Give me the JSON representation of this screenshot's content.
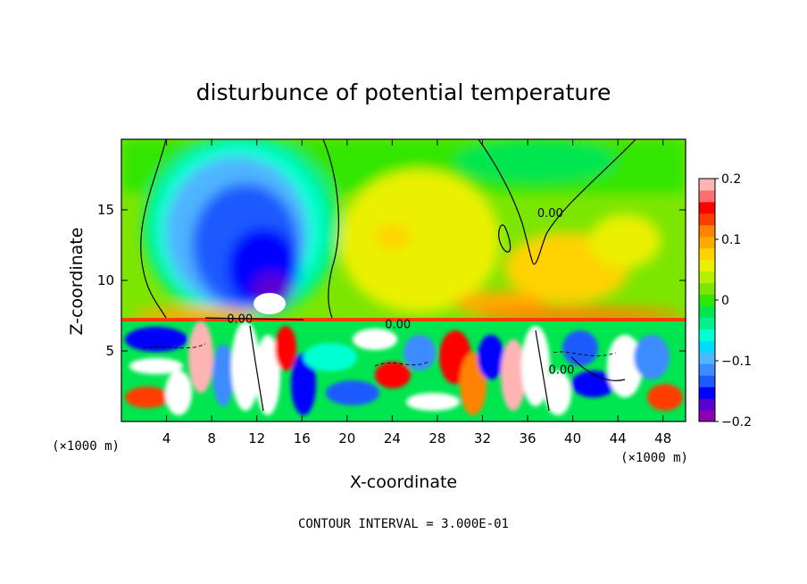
{
  "chart_data": {
    "type": "heatmap",
    "title": "disturbunce of potential temperature",
    "xlabel": "X-coordinate",
    "ylabel": "Z-coordinate",
    "x_unit": "(×1000 m)",
    "y_unit": "(×1000 m)",
    "xlim": [
      0,
      50
    ],
    "ylim": [
      0,
      20
    ],
    "x_ticks": [
      4,
      8,
      12,
      16,
      20,
      24,
      28,
      32,
      36,
      40,
      44,
      48
    ],
    "y_ticks": [
      5,
      10,
      15
    ],
    "colorbar": {
      "range": [
        -0.2,
        0.2
      ],
      "tick_values": [
        0.2,
        0.1,
        0,
        -0.1,
        -0.2
      ],
      "tick_labels": [
        "0.2",
        "0.1",
        "0",
        "−0.1",
        "−0.2"
      ],
      "colors": [
        "#8b00b4",
        "#5a00d2",
        "#0000ff",
        "#1e5aff",
        "#3c8cff",
        "#50b4ff",
        "#00dcff",
        "#00ffd2",
        "#00f08c",
        "#00e650",
        "#32e600",
        "#7ce600",
        "#b4f000",
        "#ebf000",
        "#ffd200",
        "#ffaa00",
        "#ff8200",
        "#ff3c00",
        "#ff0000",
        "#ff6e6e",
        "#ffb4b4"
      ]
    },
    "contour_labels": [
      {
        "text": "0.00",
        "x": 38,
        "z": 14.5
      },
      {
        "text": "0.00",
        "x": 10.5,
        "z": 7.0
      },
      {
        "text": "0.00",
        "x": 24.5,
        "z": 6.6
      },
      {
        "text": "0.00",
        "x": 39,
        "z": 3.4
      }
    ],
    "footer": "CONTOUR INTERVAL = 3.000E-01"
  }
}
